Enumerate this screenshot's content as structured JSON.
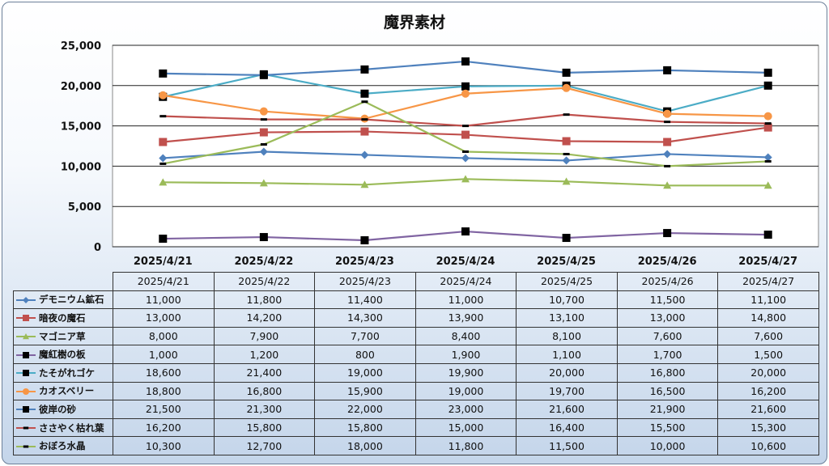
{
  "chart_data": {
    "type": "line",
    "title": "魔界素材",
    "xlabel": "",
    "ylabel": "",
    "ylim": [
      0,
      25000
    ],
    "yticks": [
      "0",
      "5,000",
      "10,000",
      "15,000",
      "20,000",
      "25,000"
    ],
    "grid": true,
    "legend": "data-table",
    "categories": [
      "2025/4/21",
      "2025/4/22",
      "2025/4/23",
      "2025/4/24",
      "2025/4/25",
      "2025/4/26",
      "2025/4/27"
    ],
    "series": [
      {
        "name": "デモニウム鉱石",
        "color": "#4f81bd",
        "marker": "diamond",
        "values": [
          11000,
          11800,
          11400,
          11000,
          10700,
          11500,
          11100
        ],
        "labels": [
          "11,000",
          "11,800",
          "11,400",
          "11,000",
          "10,700",
          "11,500",
          "11,100"
        ]
      },
      {
        "name": "暗夜の魔石",
        "color": "#c0504d",
        "marker": "square",
        "values": [
          13000,
          14200,
          14300,
          13900,
          13100,
          13000,
          14800
        ],
        "labels": [
          "13,000",
          "14,200",
          "14,300",
          "13,900",
          "13,100",
          "13,000",
          "14,800"
        ]
      },
      {
        "name": "マゴニア草",
        "color": "#9bbb59",
        "marker": "triangle",
        "values": [
          8000,
          7900,
          7700,
          8400,
          8100,
          7600,
          7600
        ],
        "labels": [
          "8,000",
          "7,900",
          "7,700",
          "8,400",
          "8,100",
          "7,600",
          "7,600"
        ]
      },
      {
        "name": "魔紅樹の板",
        "color": "#8064a2",
        "marker": "square-black",
        "values": [
          1000,
          1200,
          800,
          1900,
          1100,
          1700,
          1500
        ],
        "labels": [
          "1,000",
          "1,200",
          "800",
          "1,900",
          "1,100",
          "1,700",
          "1,500"
        ]
      },
      {
        "name": "たそがれゴケ",
        "color": "#4bacc6",
        "marker": "square-black",
        "values": [
          18600,
          21400,
          19000,
          19900,
          20000,
          16800,
          20000
        ],
        "labels": [
          "18,600",
          "21,400",
          "19,000",
          "19,900",
          "20,000",
          "16,800",
          "20,000"
        ]
      },
      {
        "name": "カオスベリー",
        "color": "#f79646",
        "marker": "circle",
        "values": [
          18800,
          16800,
          15900,
          19000,
          19700,
          16500,
          16200
        ],
        "labels": [
          "18,800",
          "16,800",
          "15,900",
          "19,000",
          "19,700",
          "16,500",
          "16,200"
        ]
      },
      {
        "name": "彼岸の砂",
        "color": "#4f81bd",
        "marker": "square-black",
        "values": [
          21500,
          21300,
          22000,
          23000,
          21600,
          21900,
          21600
        ],
        "labels": [
          "21,500",
          "21,300",
          "22,000",
          "23,000",
          "21,600",
          "21,900",
          "21,600"
        ]
      },
      {
        "name": "ささやく枯れ葉",
        "color": "#c0504d",
        "marker": "dash",
        "values": [
          16200,
          15800,
          15800,
          15000,
          16400,
          15500,
          15300
        ],
        "labels": [
          "16,200",
          "15,800",
          "15,800",
          "15,000",
          "16,400",
          "15,500",
          "15,300"
        ]
      },
      {
        "name": "おぼろ水晶",
        "color": "#9bbb59",
        "marker": "dash",
        "values": [
          10300,
          12700,
          18000,
          11800,
          11500,
          10000,
          10600
        ],
        "labels": [
          "10,300",
          "12,700",
          "18,000",
          "11,800",
          "11,500",
          "10,000",
          "10,600"
        ]
      }
    ]
  }
}
